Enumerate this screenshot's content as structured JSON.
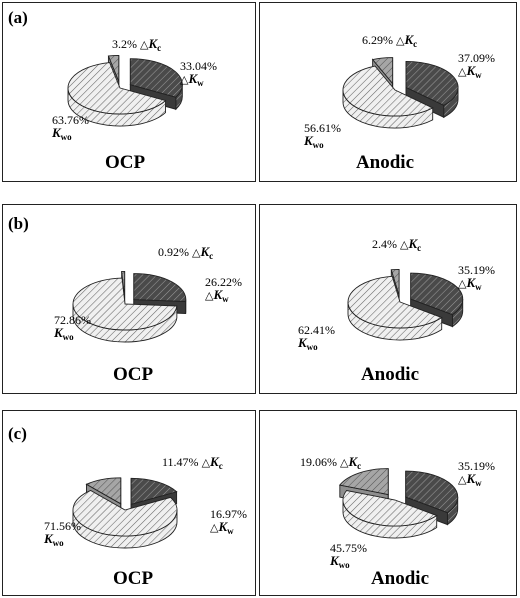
{
  "rows": [
    {
      "label": "(a)"
    },
    {
      "label": "(b)"
    },
    {
      "label": "(c)"
    }
  ],
  "legend_symbols": {
    "delta": "△",
    "k": "K",
    "c": "c",
    "w": "w",
    "wo": "wo"
  },
  "colors": {
    "dark": "#4a4a4a",
    "mid": "#a6a6a6",
    "light": "#f0f0f0",
    "hatch": "#333333",
    "border": "#222222"
  },
  "chart_data": [
    {
      "type": "pie",
      "row": "(a)",
      "title": "OCP",
      "categories": [
        "ΔKw",
        "Kwo",
        "ΔKc"
      ],
      "values": [
        33.04,
        63.76,
        3.2
      ],
      "value_labels": [
        "33.04%",
        "63.76%",
        "3.2%"
      ]
    },
    {
      "type": "pie",
      "row": "(a)",
      "title": "Anodic",
      "categories": [
        "ΔKw",
        "Kwo",
        "ΔKc"
      ],
      "values": [
        37.09,
        56.61,
        6.29
      ],
      "value_labels": [
        "37.09%",
        "56.61%",
        "6.29%"
      ]
    },
    {
      "type": "pie",
      "row": "(b)",
      "title": "OCP",
      "categories": [
        "ΔKw",
        "Kwo",
        "ΔKc"
      ],
      "values": [
        26.22,
        72.86,
        0.92
      ],
      "value_labels": [
        "26.22%",
        "72.86%",
        "0.92%"
      ]
    },
    {
      "type": "pie",
      "row": "(b)",
      "title": "Anodic",
      "categories": [
        "ΔKw",
        "Kwo",
        "ΔKc"
      ],
      "values": [
        35.19,
        62.41,
        2.4
      ],
      "value_labels": [
        "35.19%",
        "62.41%",
        "2.4%"
      ]
    },
    {
      "type": "pie",
      "row": "(c)",
      "title": "OCP",
      "categories": [
        "ΔKw",
        "Kwo",
        "ΔKc"
      ],
      "values": [
        16.97,
        71.56,
        11.47
      ],
      "value_labels": [
        "16.97%",
        "71.56%",
        "11.47%"
      ]
    },
    {
      "type": "pie",
      "row": "(c)",
      "title": "Anodic",
      "categories": [
        "ΔKw",
        "Kwo",
        "ΔKc"
      ],
      "values": [
        35.19,
        45.75,
        19.06
      ],
      "value_labels": [
        "35.19%",
        "45.75%",
        "19.06%"
      ]
    }
  ]
}
